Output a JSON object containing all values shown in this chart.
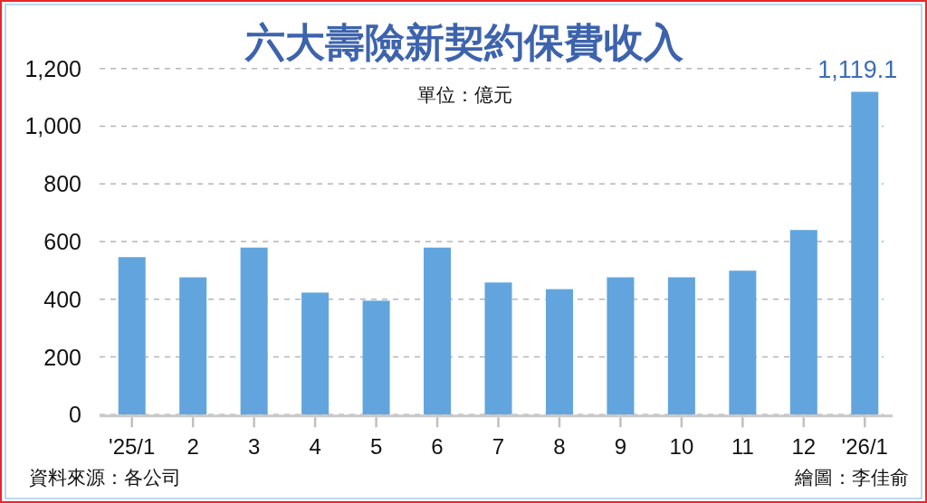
{
  "chart_data": {
    "type": "bar",
    "title": "六大壽險新契約保費收入",
    "subtitle": "單位：億元",
    "categories": [
      "'25/1",
      "2",
      "3",
      "4",
      "5",
      "6",
      "7",
      "8",
      "9",
      "10",
      "11",
      "12",
      "'26/1"
    ],
    "values": [
      546,
      476,
      579,
      423,
      395,
      579,
      458,
      435,
      476,
      476,
      499,
      640,
      1119.1
    ],
    "color": "#62a5de",
    "value_labels": [
      null,
      null,
      null,
      null,
      null,
      null,
      null,
      null,
      null,
      null,
      null,
      null,
      "1,119.1"
    ],
    "ylim": [
      0,
      1200
    ],
    "yticks": [
      0,
      200,
      400,
      600,
      800,
      {
        "value": 1000,
        "label": "1,000"
      },
      {
        "value": 1200,
        "label": "1,200"
      }
    ],
    "grid": "y",
    "annotations": [
      "資料來源：各公司",
      "繪圖：李佳俞"
    ]
  }
}
